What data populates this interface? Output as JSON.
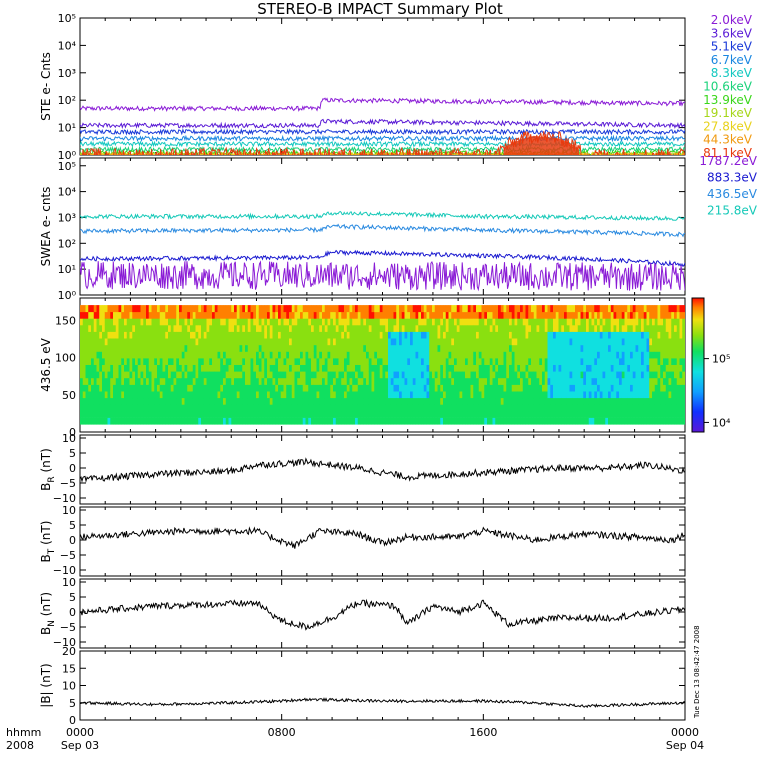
{
  "title": "STEREO-B IMPACT Summary Plot",
  "x_axis": {
    "row1_label": "hhmm",
    "row2_label": "2008",
    "ticks": [
      {
        "hhmm": "0000",
        "date": "Sep 03",
        "t": 0
      },
      {
        "hhmm": "0800",
        "date": "",
        "t": 8
      },
      {
        "hhmm": "1600",
        "date": "",
        "t": 16
      },
      {
        "hhmm": "0000",
        "date": "Sep 04",
        "t": 24
      }
    ],
    "range_hours": [
      0,
      24
    ]
  },
  "side_stamp": "Tue Dec 13 08:42:47 2008",
  "legend_ste": [
    {
      "label": "2.0keV",
      "color": "#8a1bd6"
    },
    {
      "label": "3.6keV",
      "color": "#5a1bd6"
    },
    {
      "label": "5.1keV",
      "color": "#1a3ad8"
    },
    {
      "label": "6.7keV",
      "color": "#1a86e0"
    },
    {
      "label": "8.3keV",
      "color": "#12c8c0"
    },
    {
      "label": "10.6keV",
      "color": "#1ad27a"
    },
    {
      "label": "13.9keV",
      "color": "#3ad61a"
    },
    {
      "label": "19.1keV",
      "color": "#a6d61a"
    },
    {
      "label": "27.8keV",
      "color": "#e8d21a"
    },
    {
      "label": "44.3keV",
      "color": "#f09a10"
    },
    {
      "label": "81.1keV",
      "color": "#e83a0e"
    }
  ],
  "legend_swea": [
    {
      "label": "1787.2eV",
      "color": "#8a1bd6"
    },
    {
      "label": "883.3eV",
      "color": "#1a1ad0"
    },
    {
      "label": "436.5eV",
      "color": "#2a8ae0"
    },
    {
      "label": "215.8eV",
      "color": "#16c9b8"
    }
  ],
  "colorbar": {
    "tick_labels": [
      "10⁵",
      "10⁴"
    ],
    "tick_values_log": [
      5,
      4
    ],
    "range_log": [
      3.85,
      5.95
    ]
  },
  "chart_data": [
    {
      "type": "line",
      "panel": "ste",
      "ylabel": "STE e- Cnts",
      "log_scale": true,
      "ylim_log": [
        0,
        5
      ],
      "yticks": [
        "10⁰",
        "10¹",
        "10²",
        "10³",
        "10⁴",
        "10⁵"
      ],
      "series": [
        {
          "name": "2.0keV",
          "base": 50,
          "profile": [
            [
              0,
              50
            ],
            [
              9.5,
              50
            ],
            [
              9.6,
              100
            ],
            [
              24,
              75
            ]
          ]
        },
        {
          "name": "3.6keV",
          "base": 12,
          "profile": [
            [
              0,
              12
            ],
            [
              9.5,
              12
            ],
            [
              9.6,
              17
            ],
            [
              24,
              12
            ]
          ]
        },
        {
          "name": "5.1keV",
          "base": 7,
          "profile": [
            [
              0,
              7
            ],
            [
              24,
              7
            ]
          ]
        },
        {
          "name": "6.7keV",
          "base": 4,
          "profile": [
            [
              0,
              4
            ],
            [
              24,
              4
            ]
          ]
        },
        {
          "name": "8.3keV",
          "base": 2.5,
          "profile": [
            [
              0,
              2.5
            ],
            [
              24,
              2.5
            ]
          ]
        },
        {
          "name": "10.6keV",
          "base": 1.6,
          "profile": [
            [
              0,
              1.6
            ],
            [
              24,
              1.6
            ]
          ]
        },
        {
          "name": "13.9keV",
          "base": 1.2,
          "profile": [
            [
              0,
              1.2
            ],
            [
              24,
              1.2
            ]
          ]
        },
        {
          "name": "19.1keV",
          "base": 1.0,
          "profile": [
            [
              0,
              1
            ],
            [
              24,
              1
            ]
          ]
        },
        {
          "name": "27.8keV",
          "base": 1.0,
          "profile": [
            [
              0,
              1
            ],
            [
              24,
              1
            ]
          ]
        },
        {
          "name": "44.3keV",
          "base": 1.0,
          "profile": [
            [
              0,
              1
            ],
            [
              24,
              1
            ]
          ]
        },
        {
          "name": "81.1keV",
          "base": 1.0,
          "profile": [
            [
              0,
              1
            ],
            [
              16.5,
              1
            ],
            [
              18,
              5
            ],
            [
              19,
              4
            ],
            [
              20,
              1
            ],
            [
              24,
              1
            ]
          ]
        }
      ]
    },
    {
      "type": "line",
      "panel": "swea",
      "ylabel": "SWEA e- cnts",
      "log_scale": true,
      "ylim_log": [
        0,
        5.3
      ],
      "yticks": [
        "10⁰",
        "10¹",
        "10²",
        "10³",
        "10⁴",
        "10⁵"
      ],
      "series": [
        {
          "name": "215.8eV",
          "profile": [
            [
              0,
              1100
            ],
            [
              9.5,
              1100
            ],
            [
              10,
              1500
            ],
            [
              16,
              1100
            ],
            [
              24,
              900
            ]
          ]
        },
        {
          "name": "436.5eV",
          "profile": [
            [
              0,
              300
            ],
            [
              9.5,
              330
            ],
            [
              10,
              450
            ],
            [
              16,
              320
            ],
            [
              24,
              220
            ]
          ]
        },
        {
          "name": "883.3eV",
          "profile": [
            [
              0,
              25
            ],
            [
              9.5,
              28
            ],
            [
              10,
              45
            ],
            [
              20,
              25
            ],
            [
              24,
              15
            ]
          ]
        },
        {
          "name": "1787.2eV",
          "profile": [
            [
              0,
              6
            ],
            [
              24,
              5
            ]
          ]
        }
      ]
    },
    {
      "type": "heatmap",
      "panel": "pitch-angle",
      "ylabel": "436.5 eV",
      "ylim": [
        0,
        180
      ],
      "yticks": [
        "0",
        "50",
        "100",
        "150"
      ],
      "ytick_values": [
        0,
        50,
        100,
        150
      ]
    },
    {
      "type": "line",
      "panel": "br",
      "ylabel": "B_R (nT)",
      "ylabel_main": "B",
      "ylabel_sub": "R",
      "ylabel_unit": "(nT)",
      "ylim": [
        -12,
        11
      ],
      "yticks": [
        "10",
        "5",
        "0",
        "−5",
        "−10"
      ],
      "ytick_values": [
        10,
        5,
        0,
        -5,
        -10
      ],
      "series": [
        {
          "profile": [
            [
              0,
              -4
            ],
            [
              3,
              -2
            ],
            [
              6,
              -1
            ],
            [
              7,
              1
            ],
            [
              9,
              2
            ],
            [
              11,
              0
            ],
            [
              13,
              -3
            ],
            [
              15,
              -2
            ],
            [
              17,
              -1
            ],
            [
              19,
              0
            ],
            [
              21,
              0
            ],
            [
              22.5,
              1
            ],
            [
              24,
              -1
            ]
          ]
        }
      ]
    },
    {
      "type": "line",
      "panel": "bt",
      "ylabel": "B_T (nT)",
      "ylabel_main": "B",
      "ylabel_sub": "T",
      "ylabel_unit": "(nT)",
      "ylim": [
        -12,
        11
      ],
      "yticks": [
        "10",
        "5",
        "0",
        "−5",
        "−10"
      ],
      "ytick_values": [
        10,
        5,
        0,
        -5,
        -10
      ],
      "series": [
        {
          "profile": [
            [
              0,
              1
            ],
            [
              2,
              2
            ],
            [
              4,
              3
            ],
            [
              7,
              3
            ],
            [
              8.5,
              -2
            ],
            [
              9.5,
              3
            ],
            [
              11,
              2
            ],
            [
              12,
              -1
            ],
            [
              13,
              1
            ],
            [
              15,
              1
            ],
            [
              16,
              3
            ],
            [
              18,
              0
            ],
            [
              20,
              2
            ],
            [
              22,
              1
            ],
            [
              23.5,
              0
            ],
            [
              24,
              2
            ]
          ]
        }
      ]
    },
    {
      "type": "line",
      "panel": "bn",
      "ylabel": "B_N (nT)",
      "ylabel_main": "B",
      "ylabel_sub": "N",
      "ylabel_unit": "(nT)",
      "ylim": [
        -12,
        11
      ],
      "yticks": [
        "10",
        "5",
        "0",
        "−5",
        "−10"
      ],
      "ytick_values": [
        10,
        5,
        0,
        -5,
        -10
      ],
      "series": [
        {
          "profile": [
            [
              0,
              0
            ],
            [
              3,
              2
            ],
            [
              7,
              3
            ],
            [
              8,
              -3
            ],
            [
              9,
              -5
            ],
            [
              10,
              -2
            ],
            [
              11,
              3
            ],
            [
              12.5,
              2
            ],
            [
              13,
              -4
            ],
            [
              14,
              2
            ],
            [
              15,
              0
            ],
            [
              16,
              3
            ],
            [
              17,
              -4
            ],
            [
              19,
              -2
            ],
            [
              21,
              -2
            ],
            [
              23,
              0
            ],
            [
              24,
              1
            ]
          ]
        }
      ]
    },
    {
      "type": "line",
      "panel": "bmag",
      "ylabel": "|B| (nT)",
      "ylim": [
        0,
        20
      ],
      "yticks": [
        "20",
        "15",
        "10",
        "5",
        "0"
      ],
      "ytick_values": [
        20,
        15,
        10,
        5,
        0
      ],
      "series": [
        {
          "profile": [
            [
              0,
              5
            ],
            [
              3,
              4.5
            ],
            [
              6,
              5
            ],
            [
              8,
              5.5
            ],
            [
              9,
              6
            ],
            [
              12,
              5.5
            ],
            [
              16,
              5.5
            ],
            [
              18,
              5
            ],
            [
              20,
              4
            ],
            [
              24,
              5
            ]
          ]
        }
      ]
    }
  ]
}
